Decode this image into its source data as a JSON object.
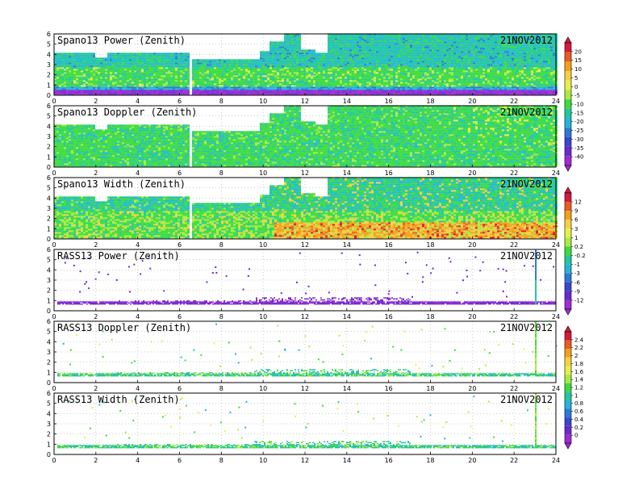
{
  "chart_data": [
    {
      "type": "heatmap",
      "title": "Spano13 Power (Zenith)",
      "date": "21NOV2012",
      "xlim": [
        0,
        24
      ],
      "ylim": [
        0,
        6
      ],
      "x_ticks": [
        "0",
        "2",
        "4",
        "6",
        "8",
        "10",
        "12",
        "14",
        "16",
        "18",
        "20",
        "22",
        "24"
      ],
      "y_ticks": [
        "0",
        "1",
        "2",
        "3",
        "4",
        "5",
        "6"
      ],
      "grid": true,
      "colorbar": "cb1",
      "mode": "power",
      "top_profile": [
        [
          0,
          4.2
        ],
        [
          1.9,
          4.2
        ],
        [
          1.9,
          3.6
        ],
        [
          2.5,
          3.6
        ],
        [
          2.5,
          4.1
        ],
        [
          6.5,
          4.1
        ],
        [
          6.5,
          3.5
        ],
        [
          9.8,
          3.5
        ],
        [
          9.8,
          4.3
        ],
        [
          10.3,
          4.3
        ],
        [
          10.3,
          5.3
        ],
        [
          10.9,
          5.3
        ],
        [
          10.9,
          6
        ],
        [
          11.7,
          6
        ],
        [
          11.7,
          4.4
        ],
        [
          12.4,
          4.4
        ],
        [
          12.4,
          4.2
        ],
        [
          13,
          4.2
        ],
        [
          13,
          6
        ],
        [
          24,
          6
        ]
      ]
    },
    {
      "type": "heatmap",
      "title": "Spano13 Doppler (Zenith)",
      "date": "21NOV2012",
      "xlim": [
        0,
        24
      ],
      "ylim": [
        0,
        6
      ],
      "x_ticks": [
        "0",
        "2",
        "4",
        "6",
        "8",
        "10",
        "12",
        "14",
        "16",
        "18",
        "20",
        "22",
        "24"
      ],
      "y_ticks": [
        "0",
        "1",
        "2",
        "3",
        "4",
        "5",
        "6"
      ],
      "grid": true,
      "colorbar": "cb1",
      "mode": "doppler",
      "top_profile": [
        [
          0,
          4.2
        ],
        [
          1.9,
          4.2
        ],
        [
          1.9,
          3.6
        ],
        [
          2.5,
          3.6
        ],
        [
          2.5,
          4.1
        ],
        [
          6.5,
          4.1
        ],
        [
          6.5,
          3.5
        ],
        [
          9.8,
          3.5
        ],
        [
          9.8,
          4.3
        ],
        [
          10.3,
          4.3
        ],
        [
          10.3,
          5.3
        ],
        [
          10.9,
          5.3
        ],
        [
          10.9,
          6
        ],
        [
          11.7,
          6
        ],
        [
          11.7,
          4.4
        ],
        [
          12.4,
          4.4
        ],
        [
          12.4,
          4.2
        ],
        [
          13,
          4.2
        ],
        [
          13,
          6
        ],
        [
          24,
          6
        ]
      ]
    },
    {
      "type": "heatmap",
      "title": "Spano13 Width (Zenith)",
      "date": "21NOV2012",
      "xlim": [
        0,
        24
      ],
      "ylim": [
        0,
        6
      ],
      "x_ticks": [
        "0",
        "2",
        "4",
        "6",
        "8",
        "10",
        "12",
        "14",
        "16",
        "18",
        "20",
        "22",
        "24"
      ],
      "y_ticks": [
        "0",
        "1",
        "2",
        "3",
        "4",
        "5",
        "6"
      ],
      "grid": true,
      "colorbar": "cb2",
      "mode": "width",
      "top_profile": [
        [
          0,
          4.2
        ],
        [
          1.9,
          4.2
        ],
        [
          1.9,
          3.6
        ],
        [
          2.5,
          3.6
        ],
        [
          2.5,
          4.1
        ],
        [
          6.5,
          4.1
        ],
        [
          6.5,
          3.5
        ],
        [
          9.8,
          3.5
        ],
        [
          9.8,
          4.3
        ],
        [
          10.3,
          4.3
        ],
        [
          10.3,
          5.3
        ],
        [
          10.9,
          5.3
        ],
        [
          10.9,
          6
        ],
        [
          11.7,
          6
        ],
        [
          11.7,
          4.4
        ],
        [
          12.4,
          4.4
        ],
        [
          12.4,
          4.2
        ],
        [
          13,
          4.2
        ],
        [
          13,
          6
        ],
        [
          24,
          6
        ]
      ]
    },
    {
      "type": "scatter",
      "title": "RASS13 Power (Zenith)",
      "date": "21NOV2012",
      "xlim": [
        0,
        24
      ],
      "ylim": [
        0,
        6
      ],
      "x_ticks": [
        "0",
        "2",
        "4",
        "6",
        "8",
        "10",
        "12",
        "14",
        "16",
        "18",
        "20",
        "22",
        "24"
      ],
      "y_ticks": [
        "0",
        "1",
        "2",
        "3",
        "4",
        "5",
        "6"
      ],
      "grid": true,
      "colorbar": "cb2",
      "mode": "rass_power",
      "band_height": [
        0.55,
        1.3
      ]
    },
    {
      "type": "scatter",
      "title": "RASS13 Doppler (Zenith)",
      "date": "21NOV2012",
      "xlim": [
        0,
        24
      ],
      "ylim": [
        0,
        6
      ],
      "x_ticks": [
        "0",
        "2",
        "4",
        "6",
        "8",
        "10",
        "12",
        "14",
        "16",
        "18",
        "20",
        "22",
        "24"
      ],
      "y_ticks": [
        "0",
        "1",
        "2",
        "3",
        "4",
        "5",
        "6"
      ],
      "grid": true,
      "colorbar": "cb3",
      "mode": "rass_doppler",
      "band_height": [
        0.55,
        1.3
      ]
    },
    {
      "type": "scatter",
      "title": "RASS13 Width (Zenith)",
      "date": "21NOV2012",
      "xlim": [
        0,
        24
      ],
      "ylim": [
        0,
        6
      ],
      "x_ticks": [
        "0",
        "2",
        "4",
        "6",
        "8",
        "10",
        "12",
        "14",
        "16",
        "18",
        "20",
        "22",
        "24"
      ],
      "y_ticks": [
        "0",
        "1",
        "2",
        "3",
        "4",
        "5",
        "6"
      ],
      "grid": true,
      "colorbar": "cb3",
      "mode": "rass_width",
      "band_height": [
        0.55,
        1.3
      ]
    }
  ],
  "colorbars": {
    "cb1": {
      "labels": [
        "20",
        "15",
        "10",
        "5",
        "0",
        "-5",
        "-10",
        "-15",
        "-20",
        "-25",
        "-30",
        "-35",
        "-40"
      ],
      "colors": [
        "#d8183c",
        "#ee5a20",
        "#f5a018",
        "#f7d040",
        "#e8f048",
        "#a8ec40",
        "#3cdc3c",
        "#20c8a0",
        "#22b4dc",
        "#2a7ad8",
        "#3a46d2",
        "#6a2ad0",
        "#a22ad4"
      ]
    },
    "cb2": {
      "labels": [
        "12",
        "9",
        "6",
        "3",
        "1",
        "0.2",
        "-0.2",
        "-1",
        "-3",
        "-6",
        "-9",
        "-12"
      ],
      "colors": [
        "#d8183c",
        "#ee5a20",
        "#f5a018",
        "#f7d040",
        "#e8f048",
        "#a8ec40",
        "#3cdc3c",
        "#20c8a0",
        "#22b4dc",
        "#2a7ad8",
        "#3a46d2",
        "#6a2ad0",
        "#a22ad4"
      ]
    },
    "cb3": {
      "labels": [
        "2.4",
        "2.2",
        "2",
        "1.8",
        "1.6",
        "1.4",
        "1.2",
        "1",
        "0.8",
        "0.6",
        "0.4",
        "0.2",
        "0"
      ],
      "colors": [
        "#d8183c",
        "#ee5a20",
        "#f5a018",
        "#f7d040",
        "#e8f048",
        "#a8ec40",
        "#3cdc3c",
        "#20c8a0",
        "#22b4dc",
        "#2a7ad8",
        "#3a46d2",
        "#6a2ad0",
        "#a22ad4"
      ]
    }
  }
}
